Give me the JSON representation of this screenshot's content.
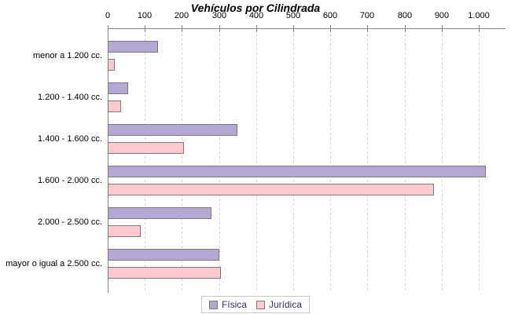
{
  "title": "Vehículos por Cilindrada",
  "chart_data": {
    "type": "bar",
    "orientation": "horizontal",
    "title": "Vehículos por Cilindrada",
    "categories": [
      "menor a 1.200 cc.",
      "1.200 - 1.400 cc.",
      "1.400 - 1.600 cc.",
      "1.600 - 2.000 cc.",
      "2.000 - 2.500 cc.",
      "mayor o igual a 2.500 cc."
    ],
    "series": [
      {
        "name": "Física",
        "color": "#B4A7D4",
        "values": [
          135,
          55,
          350,
          1020,
          280,
          300
        ]
      },
      {
        "name": "Jurídica",
        "color": "#FCC9CC",
        "values": [
          20,
          35,
          205,
          880,
          90,
          305
        ]
      }
    ],
    "x_ticks": [
      "0",
      "100",
      "200",
      "300",
      "400",
      "500",
      "600",
      "700",
      "800",
      "900",
      "1.000"
    ],
    "x_tick_values": [
      0,
      100,
      200,
      300,
      400,
      500,
      600,
      700,
      800,
      900,
      1000
    ],
    "xlim": [
      0,
      1072
    ],
    "grid": "vertical-dashed",
    "legend_position": "bottom-center"
  },
  "colors": {
    "axis": "#808080",
    "gridline": "#d4d4d4",
    "bar_border": "#7a7a7a",
    "legend_text": "#3A2B7E",
    "legend_box_border": "#c8c8c8",
    "title_text": "#000000",
    "background": "#ffffff"
  }
}
